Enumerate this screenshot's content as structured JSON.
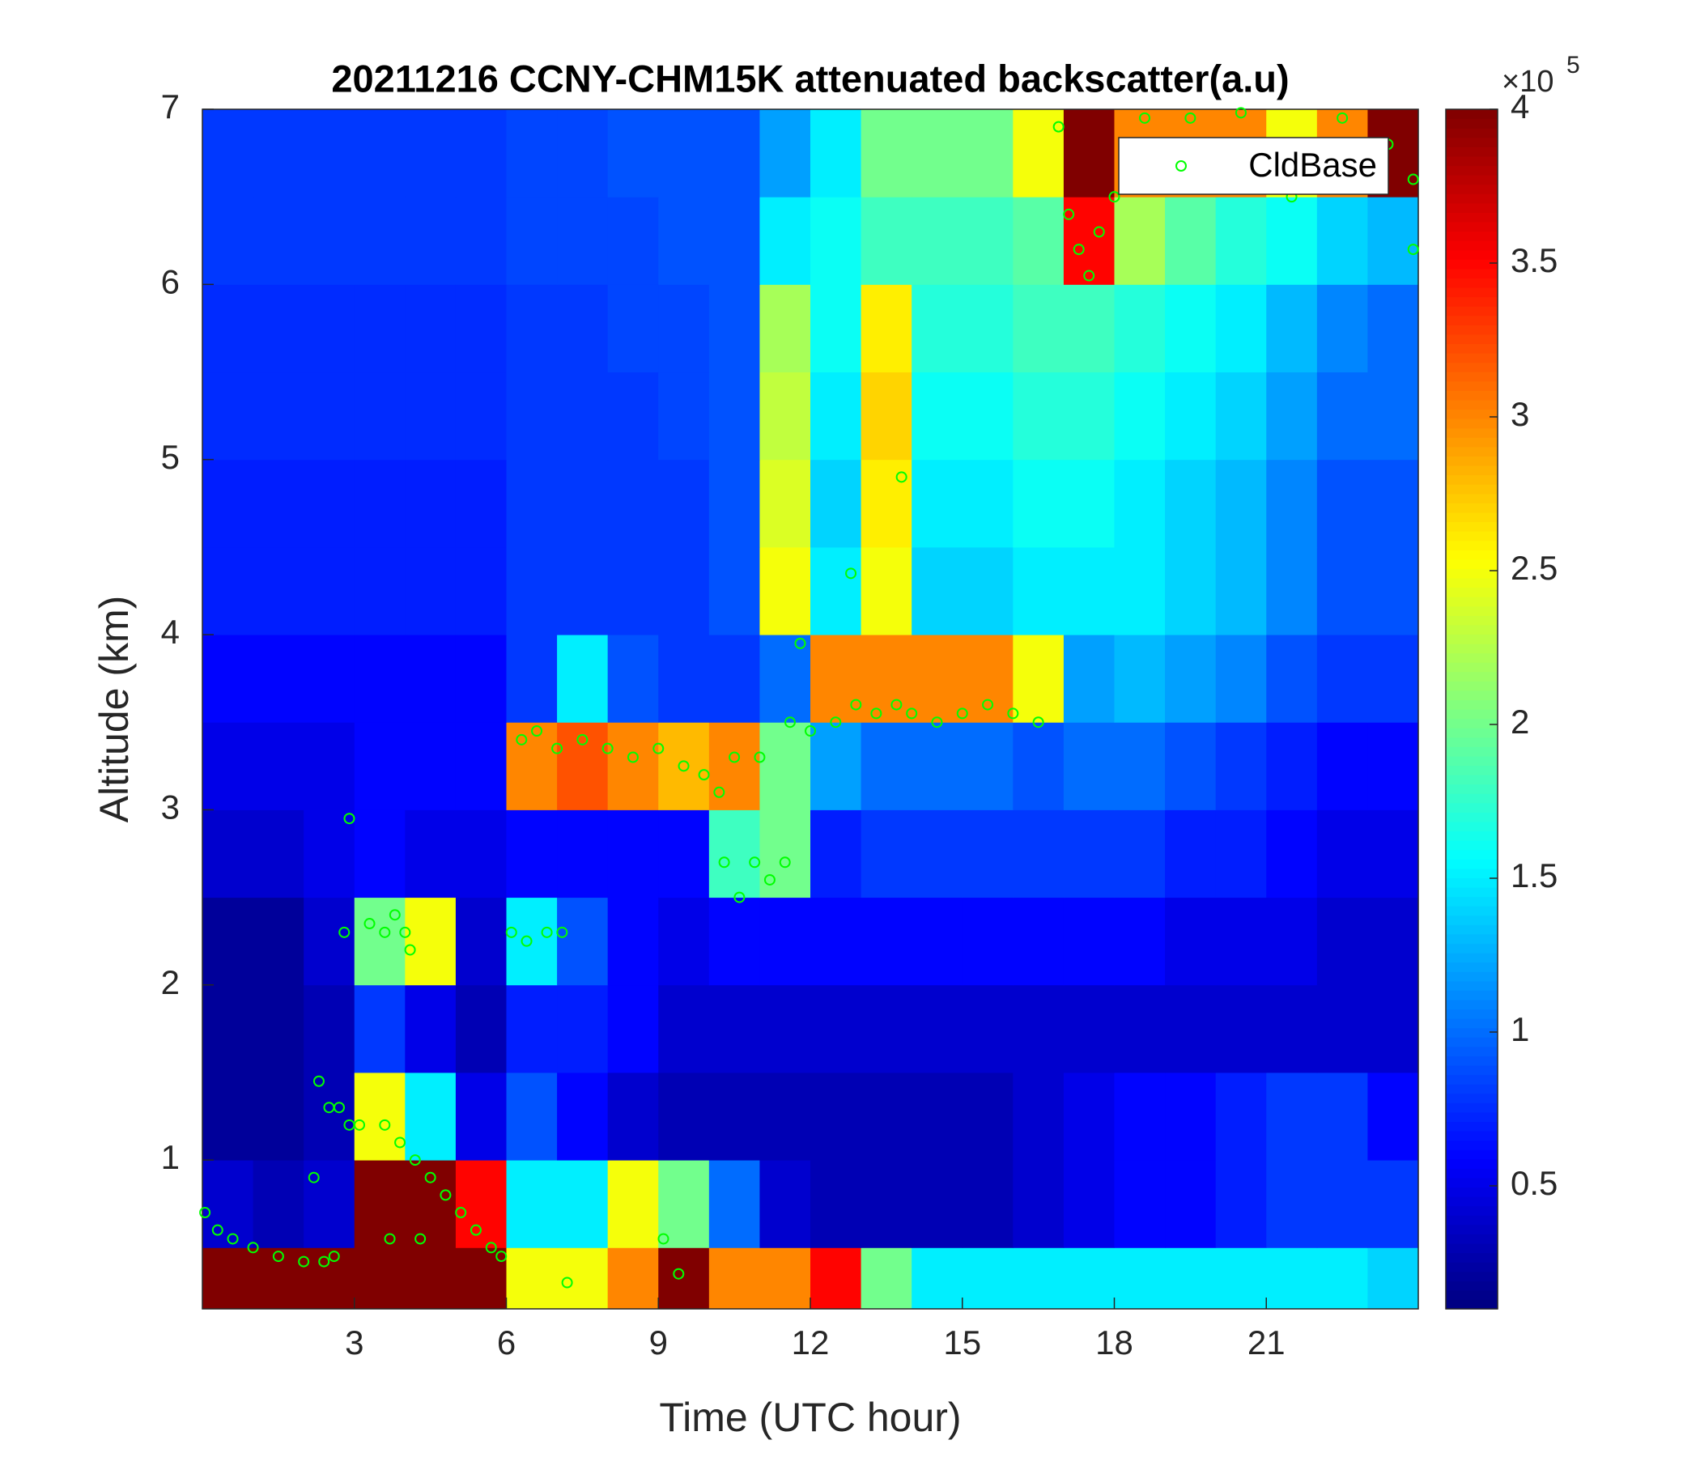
{
  "chart_data": {
    "type": "heatmap",
    "title": "20211216 CCNY-CHM15K attenuated backscatter(a.u)",
    "xlabel": "Time (UTC hour)",
    "ylabel": "Altitude (km)",
    "xlim": [
      0,
      24
    ],
    "xticks": [
      3,
      6,
      9,
      12,
      15,
      18,
      21
    ],
    "ylim": [
      0.15,
      7
    ],
    "yticks": [
      1,
      2,
      3,
      4,
      5,
      6,
      7
    ],
    "colormap": "jet",
    "colorbar": {
      "clim": [
        0.1,
        4
      ],
      "ticks": [
        0.5,
        1,
        1.5,
        2,
        2.5,
        3,
        3.5,
        4
      ],
      "exponent_base": "×10",
      "exponent": "5"
    },
    "x_edges": [
      0,
      1,
      2,
      3,
      4,
      5,
      6,
      7,
      8,
      9,
      10,
      11,
      12,
      13,
      14,
      15,
      16,
      17,
      18,
      19,
      20,
      21,
      22,
      23,
      24
    ],
    "y_edges": [
      0.15,
      0.5,
      1,
      1.5,
      2,
      2.5,
      3,
      3.5,
      4,
      4.5,
      5,
      5.5,
      6,
      6.5,
      7
    ],
    "z": [
      [
        4,
        4,
        4,
        4,
        4,
        4,
        2.5,
        2.5,
        3,
        4,
        3,
        3,
        3.5,
        2,
        1.5,
        1.5,
        1.5,
        1.5,
        1.5,
        1.5,
        1.5,
        1.5,
        1.5,
        1.4
      ],
      [
        0.4,
        0.3,
        0.4,
        4,
        4,
        3.5,
        1.5,
        1.5,
        2.5,
        2,
        1,
        0.4,
        0.3,
        0.3,
        0.3,
        0.3,
        0.4,
        0.5,
        0.6,
        0.6,
        0.7,
        0.8,
        0.8,
        0.8
      ],
      [
        0.2,
        0.2,
        0.3,
        2.5,
        1.5,
        0.5,
        0.9,
        0.6,
        0.4,
        0.3,
        0.3,
        0.3,
        0.3,
        0.3,
        0.3,
        0.3,
        0.4,
        0.5,
        0.6,
        0.6,
        0.7,
        0.8,
        0.8,
        0.6
      ],
      [
        0.2,
        0.2,
        0.3,
        0.8,
        0.5,
        0.3,
        0.7,
        0.7,
        0.6,
        0.4,
        0.4,
        0.4,
        0.4,
        0.4,
        0.4,
        0.4,
        0.4,
        0.4,
        0.4,
        0.4,
        0.4,
        0.4,
        0.4,
        0.4
      ],
      [
        0.2,
        0.2,
        0.4,
        2,
        2.5,
        0.4,
        1.5,
        0.9,
        0.6,
        0.5,
        0.6,
        0.6,
        0.6,
        0.6,
        0.6,
        0.6,
        0.6,
        0.6,
        0.6,
        0.5,
        0.5,
        0.5,
        0.4,
        0.4
      ],
      [
        0.4,
        0.4,
        0.5,
        0.6,
        0.5,
        0.5,
        0.6,
        0.6,
        0.6,
        0.6,
        1.8,
        2,
        0.7,
        0.8,
        0.8,
        0.8,
        0.8,
        0.8,
        0.8,
        0.7,
        0.7,
        0.6,
        0.5,
        0.5
      ],
      [
        0.5,
        0.5,
        0.5,
        0.6,
        0.6,
        0.6,
        3,
        3.2,
        3,
        2.8,
        3,
        2,
        1.2,
        1,
        1,
        1,
        0.9,
        1,
        1,
        0.9,
        0.8,
        0.7,
        0.6,
        0.6
      ],
      [
        0.6,
        0.6,
        0.6,
        0.6,
        0.6,
        0.6,
        0.8,
        1.5,
        0.9,
        0.8,
        0.8,
        1,
        3,
        3,
        3,
        3,
        2.5,
        1.2,
        1.3,
        1.2,
        1.1,
        0.9,
        0.8,
        0.8
      ],
      [
        0.7,
        0.7,
        0.7,
        0.7,
        0.7,
        0.7,
        0.8,
        0.8,
        0.8,
        0.8,
        0.9,
        2.5,
        1.5,
        2.5,
        1.4,
        1.4,
        1.5,
        1.5,
        1.5,
        1.4,
        1.3,
        1.1,
        0.9,
        0.9
      ],
      [
        0.7,
        0.7,
        0.7,
        0.7,
        0.7,
        0.7,
        0.8,
        0.8,
        0.8,
        0.8,
        0.9,
        2.4,
        1.4,
        2.6,
        1.5,
        1.5,
        1.6,
        1.6,
        1.5,
        1.4,
        1.3,
        1.1,
        0.9,
        0.9
      ],
      [
        0.75,
        0.75,
        0.75,
        0.75,
        0.75,
        0.75,
        0.8,
        0.8,
        0.8,
        0.85,
        0.9,
        2.3,
        1.5,
        2.7,
        1.6,
        1.6,
        1.7,
        1.7,
        1.6,
        1.5,
        1.4,
        1.2,
        1,
        1
      ],
      [
        0.75,
        0.75,
        0.75,
        0.75,
        0.75,
        0.75,
        0.8,
        0.8,
        0.85,
        0.85,
        0.9,
        2.2,
        1.6,
        2.6,
        1.7,
        1.7,
        1.8,
        1.8,
        1.7,
        1.6,
        1.5,
        1.3,
        1.1,
        1
      ],
      [
        0.8,
        0.8,
        0.8,
        0.8,
        0.8,
        0.8,
        0.85,
        0.85,
        0.85,
        0.9,
        0.9,
        1.5,
        1.6,
        1.8,
        1.8,
        1.8,
        1.9,
        3.5,
        2.2,
        1.9,
        1.7,
        1.6,
        1.4,
        1.3
      ],
      [
        0.8,
        0.8,
        0.8,
        0.8,
        0.8,
        0.8,
        0.85,
        0.85,
        0.9,
        0.9,
        0.9,
        1.2,
        1.5,
        2,
        2,
        2,
        2.5,
        4,
        3,
        3,
        3,
        2.5,
        3,
        4
      ]
    ],
    "series": [
      {
        "name": "CldBase",
        "color": "#00ff00",
        "marker": "circle",
        "x": [
          0.05,
          0.3,
          0.6,
          1,
          1.5,
          2,
          2.4,
          2.6,
          2.2,
          2.3,
          2.5,
          2.7,
          2.9,
          2.9,
          2.8,
          3.1,
          3.3,
          3.6,
          3.8,
          4,
          4.1,
          3.6,
          3.9,
          4.2,
          4.5,
          4.8,
          5.1,
          5.4,
          5.7,
          5.9,
          3.7,
          4.3,
          6.1,
          6.4,
          6.8,
          7.1,
          6.3,
          6.6,
          7,
          7.5,
          8,
          8.5,
          9,
          9.5,
          9.9,
          10.2,
          10.3,
          10.6,
          10.9,
          11.2,
          11.5,
          10.5,
          11,
          11.6,
          12,
          12.5,
          12.9,
          13.3,
          13.7,
          14,
          14.5,
          15,
          15.5,
          16,
          16.5,
          7.2,
          9.1,
          9.4,
          11.8,
          12.8,
          13.8,
          16.9,
          17.1,
          17.3,
          17.5,
          17.7,
          18,
          18.6,
          19.5,
          20.5,
          21.5,
          22.5,
          23.4,
          23.9,
          23.9
        ],
        "y": [
          0.7,
          0.6,
          0.55,
          0.5,
          0.45,
          0.42,
          0.42,
          0.45,
          0.9,
          1.45,
          1.3,
          1.3,
          1.2,
          2.95,
          2.3,
          1.2,
          2.35,
          2.3,
          2.4,
          2.3,
          2.2,
          1.2,
          1.1,
          1,
          0.9,
          0.8,
          0.7,
          0.6,
          0.5,
          0.45,
          0.55,
          0.55,
          2.3,
          2.25,
          2.3,
          2.3,
          3.4,
          3.45,
          3.35,
          3.4,
          3.35,
          3.3,
          3.35,
          3.25,
          3.2,
          3.1,
          2.7,
          2.5,
          2.7,
          2.6,
          2.7,
          3.3,
          3.3,
          3.5,
          3.45,
          3.5,
          3.6,
          3.55,
          3.6,
          3.55,
          3.5,
          3.55,
          3.6,
          3.55,
          3.5,
          0.3,
          0.55,
          0.35,
          3.95,
          4.35,
          4.9,
          6.9,
          6.4,
          6.2,
          6.05,
          6.3,
          6.5,
          6.95,
          6.95,
          6.98,
          6.5,
          6.95,
          6.8,
          6.6,
          6.2
        ]
      }
    ],
    "legend_loc": "northeast"
  }
}
